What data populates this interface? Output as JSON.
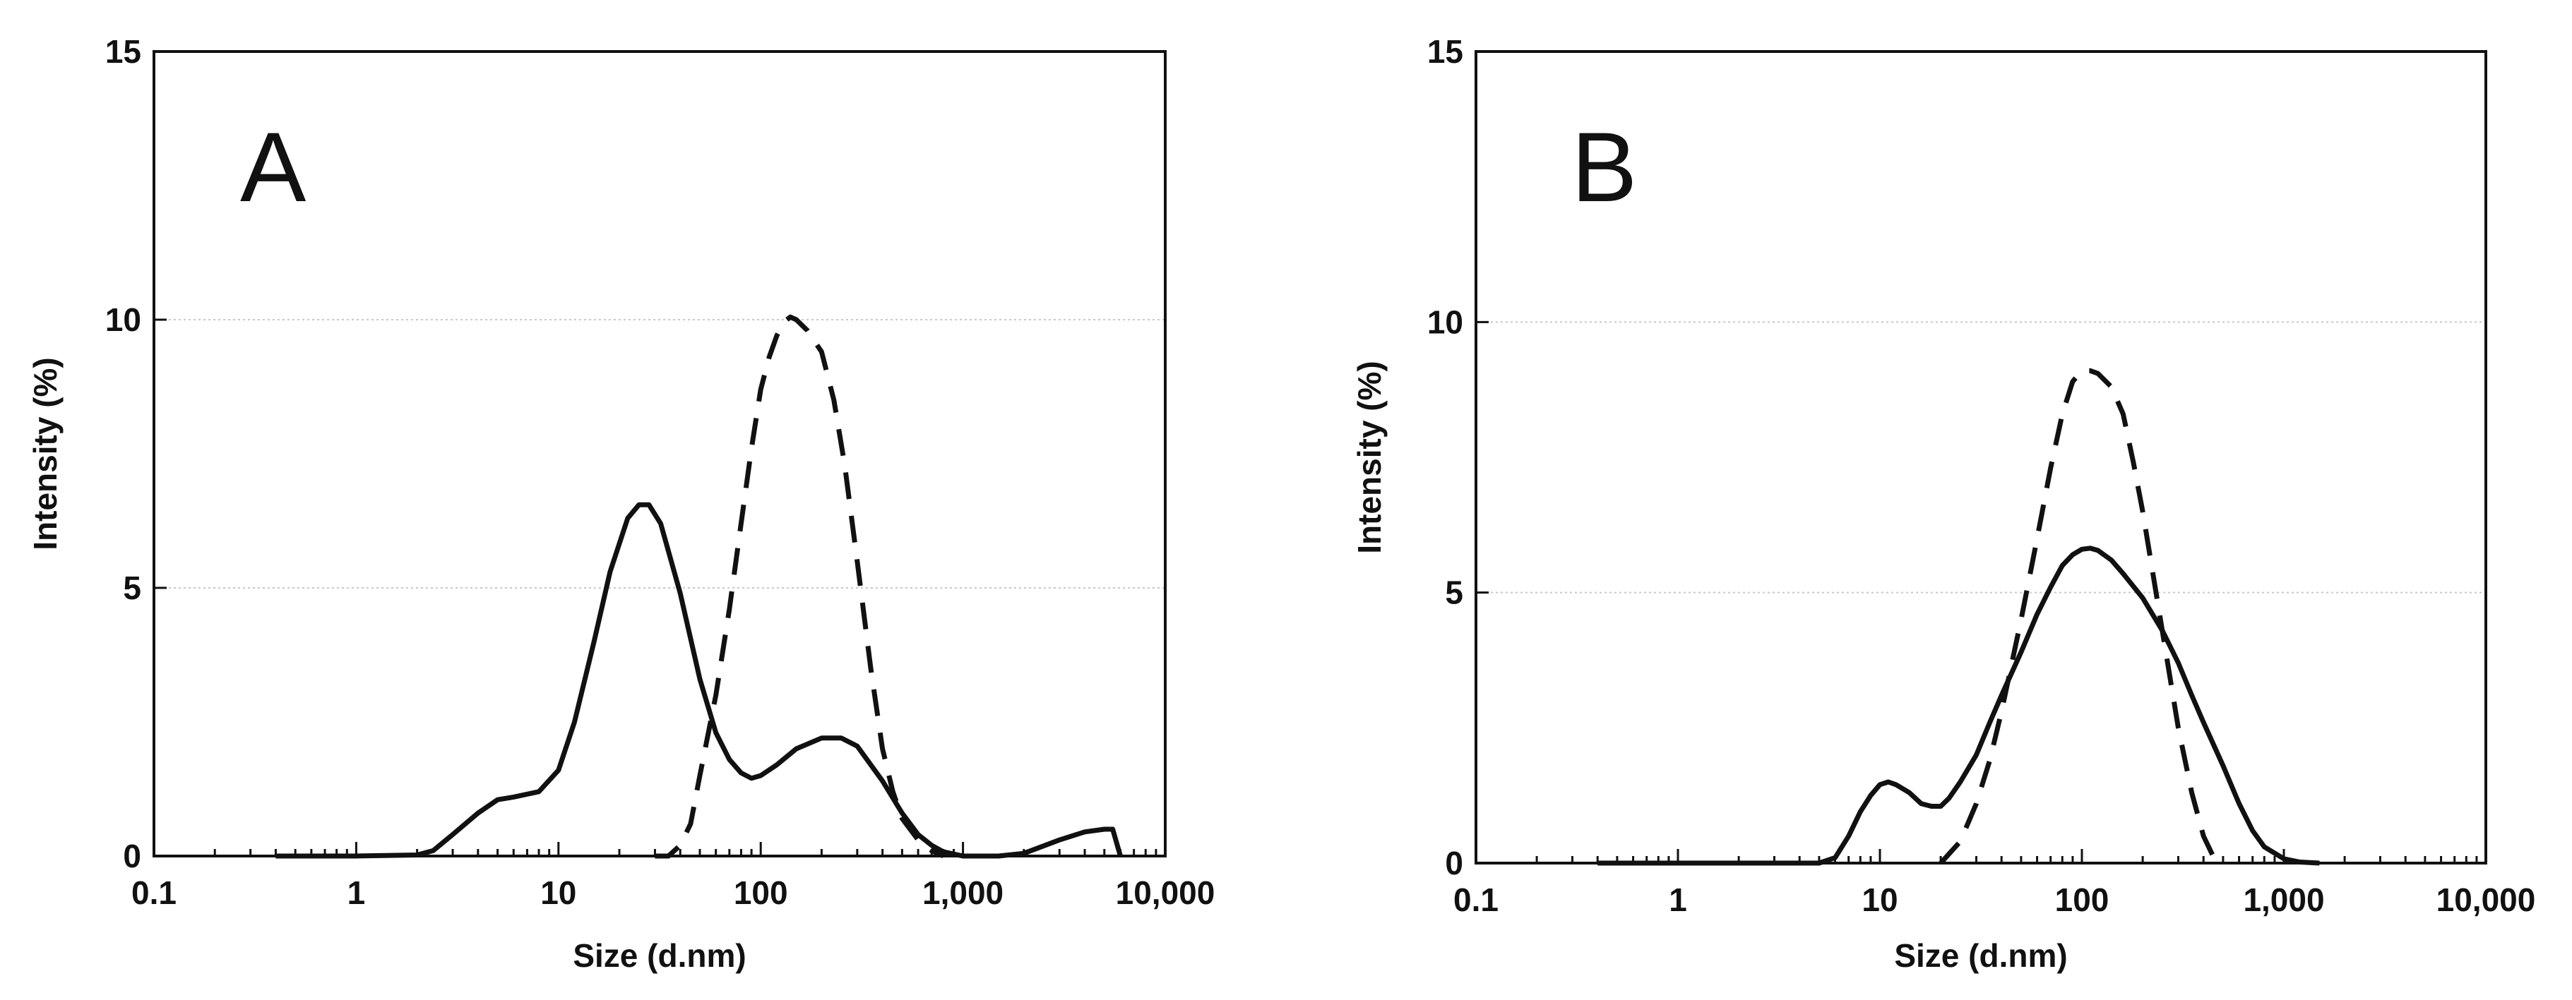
{
  "figure": {
    "panels": [
      "A",
      "B"
    ]
  },
  "chart_data": [
    {
      "panel_label": "A",
      "type": "line",
      "xscale": "log",
      "xlabel": "Size (d.nm)",
      "ylabel": "Intensity (%)",
      "xlim": [
        0.1,
        10000
      ],
      "ylim": [
        0,
        15
      ],
      "xticks": [
        0.1,
        1,
        10,
        100,
        1000,
        10000
      ],
      "xtick_labels": [
        "0.1",
        "1",
        "10",
        "100",
        "1,000",
        "10,000"
      ],
      "yticks": [
        0,
        5,
        10,
        15
      ],
      "ytick_labels": [
        "0",
        "5",
        "10",
        "15"
      ],
      "grid_y": [
        5,
        10
      ],
      "series": [
        {
          "style": "solid",
          "x": [
            0.4,
            1.0,
            2.0,
            2.4,
            3.0,
            4.0,
            5.0,
            6.0,
            8.0,
            10.0,
            12.0,
            15.0,
            18.0,
            22.0,
            25.0,
            28.0,
            32.0,
            40.0,
            50.0,
            60.0,
            70.0,
            80.0,
            90.0,
            100.0,
            120.0,
            150.0,
            200.0,
            250.0,
            300.0,
            400.0,
            500.0,
            600.0,
            700.0,
            800.0,
            1000.0,
            1500.0,
            2000.0,
            3000.0,
            4000.0,
            5000.0,
            5500.0,
            6000.0
          ],
          "y": [
            0.0,
            0.0,
            0.02,
            0.1,
            0.4,
            0.8,
            1.05,
            1.1,
            1.2,
            1.6,
            2.5,
            4.0,
            5.3,
            6.3,
            6.55,
            6.55,
            6.2,
            4.9,
            3.3,
            2.3,
            1.8,
            1.55,
            1.45,
            1.5,
            1.7,
            2.0,
            2.2,
            2.2,
            2.05,
            1.4,
            0.8,
            0.4,
            0.2,
            0.08,
            0.0,
            0.0,
            0.05,
            0.3,
            0.45,
            0.5,
            0.5,
            0.0
          ]
        },
        {
          "style": "dashed",
          "x": [
            30,
            35,
            40,
            45,
            50,
            60,
            70,
            80,
            90,
            100,
            110,
            120,
            130,
            140,
            150,
            170,
            200,
            230,
            260,
            300,
            350,
            400,
            450,
            500,
            600,
            700,
            800
          ],
          "y": [
            0.0,
            0.0,
            0.2,
            0.6,
            1.5,
            3.0,
            4.6,
            6.2,
            7.6,
            8.7,
            9.3,
            9.7,
            9.95,
            10.05,
            10.0,
            9.8,
            9.4,
            8.5,
            7.3,
            5.5,
            3.5,
            2.0,
            1.2,
            0.7,
            0.3,
            0.1,
            0.0
          ]
        }
      ]
    },
    {
      "panel_label": "B",
      "type": "line",
      "xscale": "log",
      "xlabel": "Size (d.nm)",
      "ylabel": "Intensity (%)",
      "xlim": [
        0.1,
        10000
      ],
      "ylim": [
        0,
        15
      ],
      "xticks": [
        0.1,
        1,
        10,
        100,
        1000,
        10000
      ],
      "xtick_labels": [
        "0.1",
        "1",
        "10",
        "100",
        "1,000",
        "10,000"
      ],
      "yticks": [
        0,
        5,
        10,
        15
      ],
      "ytick_labels": [
        "0",
        "5",
        "10",
        "15"
      ],
      "grid_y": [
        5,
        10
      ],
      "series": [
        {
          "style": "solid",
          "x": [
            0.4,
            1.0,
            5.0,
            6.0,
            7.0,
            8.0,
            9.0,
            10.0,
            11.0,
            12.0,
            14.0,
            16.0,
            18.0,
            20.0,
            22.0,
            25.0,
            30.0,
            35.0,
            40.0,
            50.0,
            60.0,
            70.0,
            80.0,
            90.0,
            100.0,
            110.0,
            120.0,
            140.0,
            160.0,
            200.0,
            250.0,
            300.0,
            350.0,
            400.0,
            500.0,
            600.0,
            700.0,
            800.0,
            1000.0,
            1200.0,
            1500.0
          ],
          "y": [
            0.0,
            0.0,
            0.0,
            0.1,
            0.5,
            0.95,
            1.25,
            1.45,
            1.5,
            1.45,
            1.3,
            1.1,
            1.05,
            1.05,
            1.2,
            1.5,
            2.0,
            2.6,
            3.1,
            3.9,
            4.6,
            5.1,
            5.5,
            5.7,
            5.8,
            5.82,
            5.78,
            5.6,
            5.35,
            4.9,
            4.3,
            3.7,
            3.1,
            2.6,
            1.8,
            1.1,
            0.6,
            0.3,
            0.08,
            0.02,
            0.0
          ]
        },
        {
          "style": "dashed",
          "x": [
            20,
            25,
            30,
            35,
            40,
            50,
            60,
            70,
            80,
            90,
            100,
            110,
            120,
            140,
            160,
            180,
            200,
            250,
            300,
            350,
            400,
            450,
            500
          ],
          "y": [
            0.0,
            0.4,
            1.1,
            1.9,
            2.8,
            4.5,
            6.0,
            7.3,
            8.3,
            8.9,
            9.1,
            9.1,
            9.05,
            8.8,
            8.3,
            7.4,
            6.5,
            4.3,
            2.5,
            1.3,
            0.5,
            0.1,
            0.0
          ]
        }
      ]
    }
  ]
}
